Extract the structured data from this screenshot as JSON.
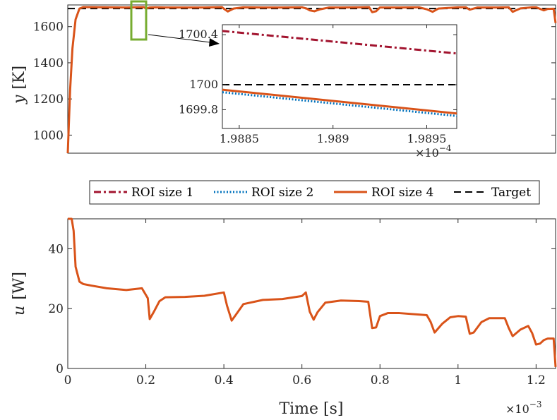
{
  "colors": {
    "roi1": "#A2142F",
    "roi2": "#0072BD",
    "roi4": "#D95319",
    "target": "#000000",
    "roi_box": "#77AC30",
    "axis": "#262626"
  },
  "chart_data": [
    {
      "id": "top",
      "type": "line",
      "xlabel": "",
      "ylabel_var": "y",
      "ylabel_unit": "[K]",
      "xlim": [
        0,
        0.00125
      ],
      "ylim": [
        900,
        1720
      ],
      "yticks": [
        1000,
        1200,
        1400,
        1600
      ],
      "ytick_labels": [
        "1000",
        "1200",
        "1400",
        "1600"
      ],
      "target_value": 1700,
      "series": [
        {
          "name": "ROI size 4",
          "x": [
            0,
            6e-06,
            1.2e-05,
            2e-05,
            3e-05,
            4e-05,
            6e-05,
            0.0001,
            0.00015,
            0.000195,
            0.0002,
            0.00021,
            0.000225,
            0.00025,
            0.0003,
            0.00035,
            0.000395,
            0.0004,
            0.00041,
            0.000425,
            0.00045,
            0.0005,
            0.00055,
            0.0006,
            0.000612,
            0.00062,
            0.000632,
            0.000645,
            0.00067,
            0.0007,
            0.00075,
            0.000772,
            0.00078,
            0.00079,
            0.0008,
            0.00085,
            0.0009,
            0.00092,
            0.000935,
            0.00095,
            0.001,
            0.00102,
            0.00103,
            0.00105,
            0.0011,
            0.00113,
            0.00114,
            0.00116,
            0.00119,
            0.0012,
            0.00122,
            0.00123,
            0.001245,
            0.00125
          ],
          "y": [
            900,
            1250,
            1480,
            1640,
            1700,
            1708,
            1708,
            1707,
            1706,
            1708,
            1700,
            1706,
            1707,
            1706,
            1706,
            1706,
            1708,
            1699,
            1684,
            1700,
            1707,
            1706,
            1706,
            1707,
            1700,
            1690,
            1685,
            1695,
            1706,
            1706,
            1707,
            1708,
            1680,
            1685,
            1706,
            1706,
            1707,
            1696,
            1682,
            1700,
            1707,
            1707,
            1694,
            1706,
            1706,
            1707,
            1682,
            1701,
            1707,
            1707,
            1690,
            1698,
            1699,
            1620
          ]
        }
      ]
    },
    {
      "id": "inset",
      "type": "line",
      "xlim": [
        1.98841,
        1.98966
      ],
      "ylim": [
        1699.65,
        1700.48
      ],
      "xticks": [
        1.9885,
        1.989,
        1.9895
      ],
      "xtick_labels": [
        "1.9885",
        "1.989",
        "1.9895"
      ],
      "x_multiplier_base": "×10",
      "x_multiplier_exp": "−4",
      "yticks": [
        1699.8,
        1700,
        1700.4
      ],
      "ytick_labels": [
        "1699.8",
        "1700",
        "1700.4"
      ],
      "series": [
        {
          "name": "ROI size 1",
          "x": [
            1.98841,
            1.98966
          ],
          "y": [
            1700.43,
            1700.25
          ]
        },
        {
          "name": "ROI size 2",
          "x": [
            1.98841,
            1.98966
          ],
          "y": [
            1699.94,
            1699.75
          ]
        },
        {
          "name": "ROI size 4",
          "x": [
            1.98841,
            1.98966
          ],
          "y": [
            1699.96,
            1699.77
          ]
        },
        {
          "name": "Target",
          "x": [
            1.98841,
            1.98966
          ],
          "y": [
            1700,
            1700
          ]
        }
      ]
    },
    {
      "id": "bottom",
      "type": "line",
      "xlabel": "Time [s]",
      "ylabel_var": "u",
      "ylabel_unit": "[W]",
      "xlim": [
        0,
        0.00125
      ],
      "ylim": [
        0,
        50
      ],
      "xticks": [
        0,
        0.0002,
        0.0004,
        0.0006,
        0.0008,
        0.001,
        0.0012
      ],
      "xtick_labels": [
        "0",
        "0.2",
        "0.4",
        "0.6",
        "0.8",
        "1",
        "1.2"
      ],
      "x_multiplier_base": "×10",
      "x_multiplier_exp": "−3",
      "yticks": [
        0,
        20,
        40
      ],
      "ytick_labels": [
        "0",
        "20",
        "40"
      ],
      "series": [
        {
          "name": "ROI size 4",
          "x": [
            0,
            1e-05,
            1.5e-05,
            2e-05,
            2.5e-05,
            3e-05,
            4e-05,
            6e-05,
            0.0001,
            0.00015,
            0.00019,
            0.000205,
            0.00021,
            0.00022,
            0.000235,
            0.00025,
            0.0003,
            0.00035,
            0.0004,
            0.000408,
            0.00042,
            0.00043,
            0.00045,
            0.0005,
            0.00055,
            0.0006,
            0.00061,
            0.00062,
            0.00063,
            0.00064,
            0.00066,
            0.0007,
            0.00075,
            0.00077,
            0.00078,
            0.00079,
            0.0008,
            0.00082,
            0.00085,
            0.0009,
            0.00092,
            0.00093,
            0.00094,
            0.00096,
            0.00098,
            0.001,
            0.00102,
            0.00103,
            0.00104,
            0.00106,
            0.00108,
            0.0011,
            0.00112,
            0.00113,
            0.00114,
            0.00116,
            0.00118,
            0.00119,
            0.0012,
            0.00121,
            0.00122,
            0.00123,
            0.001245,
            0.00125
          ],
          "y": [
            50,
            50,
            46,
            34,
            31.5,
            29,
            28.2,
            27.7,
            26.8,
            26.2,
            26.8,
            23.5,
            16.5,
            18.8,
            22.5,
            23.8,
            23.9,
            24.3,
            25.4,
            21,
            16,
            17.8,
            21.5,
            22.9,
            23.2,
            24.2,
            25.4,
            19,
            16.3,
            18.8,
            22,
            22.7,
            22.5,
            22.3,
            13.5,
            13.7,
            17.5,
            18.5,
            18.5,
            18,
            17.8,
            15.5,
            12,
            15,
            17.1,
            17.5,
            17.3,
            11.6,
            12,
            15.5,
            16.8,
            16.8,
            16.8,
            13.5,
            10.8,
            13,
            14.2,
            11.8,
            8,
            8.3,
            9.5,
            10,
            10,
            0.5
          ]
        }
      ]
    }
  ],
  "legend": {
    "entries": [
      {
        "label": "ROI size 1",
        "style": "dashdot",
        "color": "#A2142F"
      },
      {
        "label": "ROI size 2",
        "style": "dotted",
        "color": "#0072BD"
      },
      {
        "label": "ROI size 4",
        "style": "solid",
        "color": "#D95319"
      },
      {
        "label": "Target",
        "style": "dashed",
        "color": "#000000"
      }
    ]
  }
}
